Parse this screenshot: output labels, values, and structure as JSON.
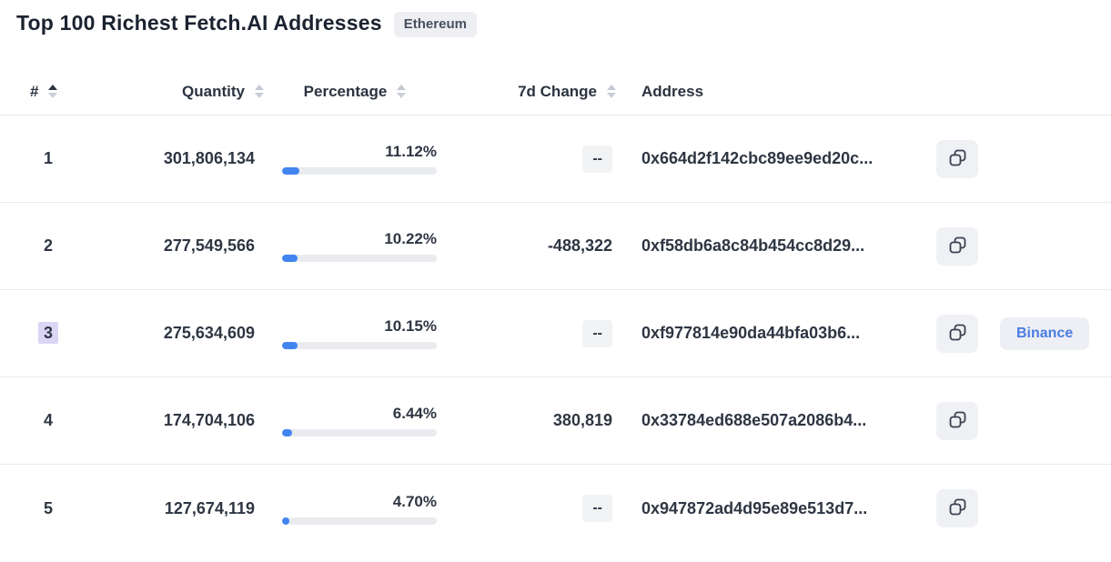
{
  "page": {
    "title": "Top 100 Richest Fetch.AI Addresses",
    "chain_badge": "Ethereum"
  },
  "table": {
    "columns": [
      {
        "label": "#",
        "sortable": true,
        "sort": "asc"
      },
      {
        "label": "Quantity",
        "sortable": true,
        "sort": "none"
      },
      {
        "label": "Percentage",
        "sortable": true,
        "sort": "none"
      },
      {
        "label": "7d Change",
        "sortable": true,
        "sort": "none"
      },
      {
        "label": "Address",
        "sortable": false,
        "sort": "none"
      }
    ],
    "rows": [
      {
        "rank": "1",
        "rank_highlighted": false,
        "quantity": "301,806,134",
        "percentage": "11.12%",
        "percent_value": 11.12,
        "change": "--",
        "change_is_empty": true,
        "address": "0x664d2f142cbc89ee9ed20c...",
        "tag": ""
      },
      {
        "rank": "2",
        "rank_highlighted": false,
        "quantity": "277,549,566",
        "percentage": "10.22%",
        "percent_value": 10.22,
        "change": "-488,322",
        "change_is_empty": false,
        "address": "0xf58db6a8c84b454cc8d29...",
        "tag": ""
      },
      {
        "rank": "3",
        "rank_highlighted": true,
        "quantity": "275,634,609",
        "percentage": "10.15%",
        "percent_value": 10.15,
        "change": "--",
        "change_is_empty": true,
        "address": "0xf977814e90da44bfa03b6...",
        "tag": "Binance"
      },
      {
        "rank": "4",
        "rank_highlighted": false,
        "quantity": "174,704,106",
        "percentage": "6.44%",
        "percent_value": 6.44,
        "change": "380,819",
        "change_is_empty": false,
        "address": "0x33784ed688e507a2086b4...",
        "tag": ""
      },
      {
        "rank": "5",
        "rank_highlighted": false,
        "quantity": "127,674,119",
        "percentage": "4.70%",
        "percent_value": 4.7,
        "change": "--",
        "change_is_empty": true,
        "address": "0x947872ad4d95e89e513d7...",
        "tag": ""
      }
    ]
  },
  "icons": {
    "sort": "sort-updown-icon",
    "copy": "copy-icon"
  },
  "colors": {
    "bar_fill": "#4285f0",
    "bar_track": "#e9ebef",
    "badge_bg": "#edeff2",
    "tag_text": "#4a7ce0",
    "tag_bg": "#edeff5",
    "rank_highlight": "#dcd5f6",
    "row_border": "#e7eaee"
  }
}
